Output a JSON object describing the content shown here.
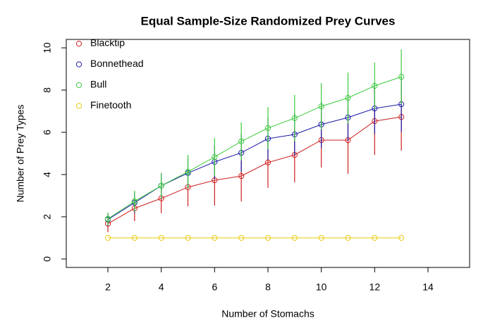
{
  "chart_data": {
    "type": "line",
    "title": "Equal Sample-Size Randomized Prey Curves",
    "x_label": "Number of Stomachs",
    "y_label": "Number of Prey Types",
    "x": [
      2,
      3,
      4,
      5,
      6,
      7,
      8,
      9,
      10,
      11,
      12,
      13
    ],
    "series": [
      {
        "name": "Blacktip",
        "color": "#cd1f1f",
        "values": [
          1.67,
          2.4,
          2.87,
          3.4,
          3.73,
          3.93,
          4.57,
          4.93,
          5.63,
          5.63,
          6.53,
          6.73
        ],
        "errors": [
          0.4,
          0.6,
          0.7,
          0.9,
          1.2,
          1.2,
          1.2,
          1.3,
          1.3,
          1.6,
          1.6,
          1.6
        ]
      },
      {
        "name": "Bonnethead",
        "color": "#1a1aa6",
        "values": [
          1.87,
          2.67,
          3.47,
          4.07,
          4.6,
          5.03,
          5.7,
          5.9,
          6.37,
          6.7,
          7.13,
          7.33
        ],
        "errors": [
          0.3,
          0.5,
          0.6,
          0.7,
          0.8,
          0.9,
          1.0,
          1.0,
          1.1,
          1.1,
          1.2,
          1.3
        ]
      },
      {
        "name": "Bull",
        "color": "#3ccc3c",
        "values": [
          1.9,
          2.73,
          3.47,
          4.13,
          4.83,
          5.57,
          6.2,
          6.67,
          7.23,
          7.63,
          8.2,
          8.63
        ],
        "errors": [
          0.3,
          0.5,
          0.6,
          0.8,
          0.9,
          0.9,
          1.0,
          1.1,
          1.1,
          1.2,
          1.1,
          1.3
        ]
      },
      {
        "name": "Finetooth",
        "color": "#e8c80c",
        "values": [
          1,
          1,
          1,
          1,
          1,
          1,
          1,
          1,
          1,
          1,
          1,
          1
        ],
        "errors": [
          0,
          0,
          0,
          0,
          0,
          0,
          0,
          0,
          0,
          0,
          0,
          0
        ]
      }
    ],
    "xlim": [
      0.44,
      15.56
    ],
    "ylim": [
      -0.4,
      10.4
    ],
    "xticks": [
      2,
      4,
      6,
      8,
      10,
      12,
      14
    ],
    "yticks": [
      0,
      2,
      4,
      6,
      8,
      10
    ],
    "legend": "top-left",
    "grid": false
  }
}
